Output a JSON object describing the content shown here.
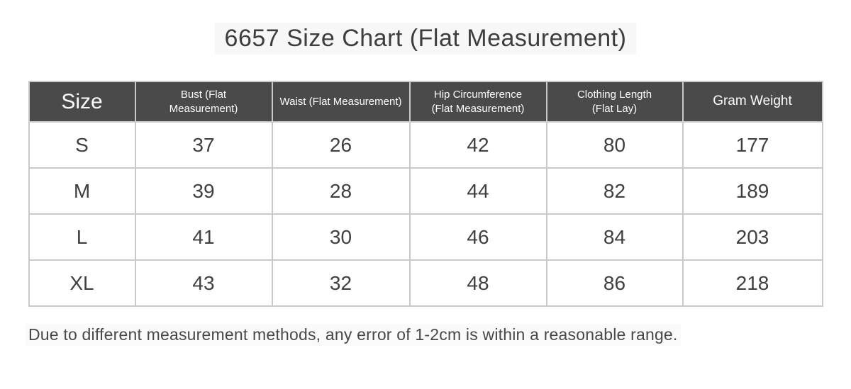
{
  "title": "6657 Size Chart (Flat Measurement)",
  "table": {
    "header": {
      "size": "Size",
      "bust": "Bust (Flat\nMeasurement)",
      "waist": "Waist (Flat Measurement)",
      "hip": "Hip Circumference\n(Flat Measurement)",
      "length": "Clothing Length\n(Flat Lay)",
      "weight": "Gram Weight"
    },
    "rows": [
      {
        "size": "S",
        "bust": "37",
        "waist": "26",
        "hip": "42",
        "length": "80",
        "weight": "177"
      },
      {
        "size": "M",
        "bust": "39",
        "waist": "28",
        "hip": "44",
        "length": "82",
        "weight": "189"
      },
      {
        "size": "L",
        "bust": "41",
        "waist": "30",
        "hip": "46",
        "length": "84",
        "weight": "203"
      },
      {
        "size": "XL",
        "bust": "43",
        "waist": "32",
        "hip": "48",
        "length": "86",
        "weight": "218"
      }
    ]
  },
  "note": "Due to different measurement methods, any error of 1-2cm is within a reasonable range.",
  "colors": {
    "header_bg": "#4a4a4a",
    "header_text": "#fdfdfd",
    "grid_line": "#c9c9c9",
    "body_text": "#3f3f3f",
    "title_text": "#3d3d3d",
    "page_bg": "#ffffff"
  },
  "chart_data": {
    "type": "table",
    "title": "6657 Size Chart (Flat Measurement)",
    "columns": [
      "Size",
      "Bust (Flat Measurement)",
      "Waist (Flat Measurement)",
      "Hip Circumference (Flat Measurement)",
      "Clothing Length (Flat Lay)",
      "Gram Weight"
    ],
    "rows": [
      [
        "S",
        37,
        26,
        42,
        80,
        177
      ],
      [
        "M",
        39,
        28,
        44,
        82,
        189
      ],
      [
        "L",
        41,
        30,
        46,
        84,
        203
      ],
      [
        "XL",
        43,
        32,
        48,
        86,
        218
      ]
    ],
    "note": "Due to different measurement methods, any error of 1-2cm is within a reasonable range."
  }
}
